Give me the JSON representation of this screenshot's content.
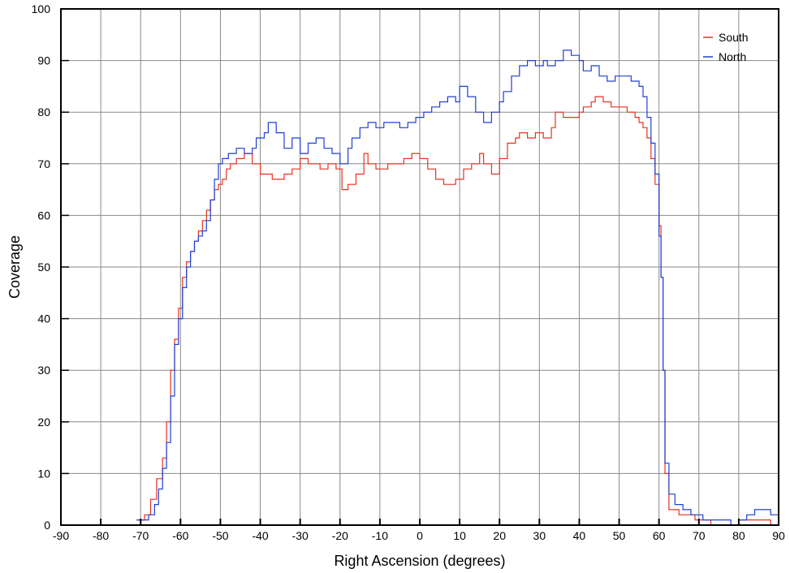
{
  "chart_data": {
    "type": "line",
    "title": "",
    "xlabel": "Right Ascension (degrees)",
    "ylabel": "Coverage",
    "xlim": [
      -90,
      90
    ],
    "ylim": [
      0,
      100
    ],
    "x_ticks": [
      -90,
      -80,
      -70,
      -60,
      -50,
      -40,
      -30,
      -20,
      -10,
      0,
      10,
      20,
      30,
      40,
      50,
      60,
      70,
      80,
      90
    ],
    "y_ticks": [
      0,
      10,
      20,
      30,
      40,
      50,
      60,
      70,
      80,
      90,
      100
    ],
    "grid": true,
    "legend": "top-right",
    "step": true,
    "series": [
      {
        "name": "South",
        "color": "#e8321e",
        "points": [
          [
            -71,
            1
          ],
          [
            -69,
            2
          ],
          [
            -67.5,
            5
          ],
          [
            -66,
            9
          ],
          [
            -64.5,
            13
          ],
          [
            -63.5,
            20
          ],
          [
            -62.5,
            30
          ],
          [
            -61.5,
            36
          ],
          [
            -60.5,
            42
          ],
          [
            -59.5,
            48
          ],
          [
            -58.5,
            51
          ],
          [
            -57.5,
            53
          ],
          [
            -56.5,
            55
          ],
          [
            -55.5,
            57
          ],
          [
            -54.5,
            59
          ],
          [
            -53.5,
            61
          ],
          [
            -52.5,
            63
          ],
          [
            -51.5,
            65
          ],
          [
            -50.5,
            66
          ],
          [
            -49.5,
            67
          ],
          [
            -48.5,
            69
          ],
          [
            -47.5,
            70
          ],
          [
            -46,
            71
          ],
          [
            -44,
            72
          ],
          [
            -42,
            70
          ],
          [
            -40,
            68
          ],
          [
            -37,
            67
          ],
          [
            -34,
            68
          ],
          [
            -32,
            69
          ],
          [
            -30,
            71
          ],
          [
            -28,
            70
          ],
          [
            -25,
            69
          ],
          [
            -23,
            70
          ],
          [
            -21,
            69
          ],
          [
            -19.5,
            65
          ],
          [
            -18,
            66
          ],
          [
            -16,
            68
          ],
          [
            -14,
            72
          ],
          [
            -13,
            70
          ],
          [
            -11,
            69
          ],
          [
            -8,
            70
          ],
          [
            -6,
            70
          ],
          [
            -4,
            71
          ],
          [
            -2,
            72
          ],
          [
            0,
            71
          ],
          [
            2,
            69
          ],
          [
            4,
            67
          ],
          [
            6,
            66
          ],
          [
            9,
            67
          ],
          [
            11,
            69
          ],
          [
            13,
            70
          ],
          [
            15,
            72
          ],
          [
            16,
            70
          ],
          [
            18,
            68
          ],
          [
            20,
            71
          ],
          [
            22,
            74
          ],
          [
            24,
            75
          ],
          [
            25,
            76
          ],
          [
            27,
            75
          ],
          [
            29,
            76
          ],
          [
            31,
            75
          ],
          [
            33,
            77
          ],
          [
            34,
            80
          ],
          [
            36,
            79
          ],
          [
            38,
            79
          ],
          [
            40,
            80
          ],
          [
            41,
            81
          ],
          [
            43,
            82
          ],
          [
            44,
            83
          ],
          [
            46,
            82
          ],
          [
            48,
            81
          ],
          [
            50,
            81
          ],
          [
            52,
            80
          ],
          [
            54,
            79
          ],
          [
            55,
            78
          ],
          [
            56,
            77
          ],
          [
            57,
            75
          ],
          [
            58,
            71
          ],
          [
            59,
            66
          ],
          [
            60,
            58
          ],
          [
            60.5,
            48
          ],
          [
            61,
            30
          ],
          [
            61.5,
            10
          ],
          [
            62.5,
            3
          ],
          [
            65,
            2
          ],
          [
            69,
            1
          ],
          [
            73,
            0
          ],
          [
            78,
            0
          ],
          [
            80,
            1
          ],
          [
            85,
            1
          ],
          [
            88,
            0
          ]
        ]
      },
      {
        "name": "North",
        "color": "#1f3fd6",
        "points": [
          [
            -71,
            1
          ],
          [
            -69.5,
            1
          ],
          [
            -68,
            2
          ],
          [
            -66.5,
            4
          ],
          [
            -65.5,
            7
          ],
          [
            -64.5,
            11
          ],
          [
            -63.5,
            16
          ],
          [
            -62.5,
            25
          ],
          [
            -61.5,
            35
          ],
          [
            -60.5,
            40
          ],
          [
            -59.5,
            46
          ],
          [
            -58.5,
            50
          ],
          [
            -57.5,
            53
          ],
          [
            -56.5,
            55
          ],
          [
            -55.5,
            56
          ],
          [
            -54.5,
            57
          ],
          [
            -53.5,
            59
          ],
          [
            -52.5,
            63
          ],
          [
            -51.5,
            67
          ],
          [
            -50.5,
            70
          ],
          [
            -49.5,
            71
          ],
          [
            -48,
            72
          ],
          [
            -46,
            73
          ],
          [
            -44,
            72
          ],
          [
            -42,
            73
          ],
          [
            -41,
            75
          ],
          [
            -39,
            76
          ],
          [
            -38,
            78
          ],
          [
            -36,
            76
          ],
          [
            -34,
            73
          ],
          [
            -32,
            75
          ],
          [
            -30,
            72
          ],
          [
            -28,
            74
          ],
          [
            -26,
            75
          ],
          [
            -24,
            73
          ],
          [
            -22,
            72
          ],
          [
            -20,
            70
          ],
          [
            -18,
            73
          ],
          [
            -17,
            75
          ],
          [
            -15,
            77
          ],
          [
            -13,
            78
          ],
          [
            -11,
            77
          ],
          [
            -9,
            78
          ],
          [
            -7,
            78
          ],
          [
            -5,
            77
          ],
          [
            -3,
            78
          ],
          [
            -1,
            79
          ],
          [
            1,
            80
          ],
          [
            3,
            81
          ],
          [
            5,
            82
          ],
          [
            7,
            83
          ],
          [
            9,
            82
          ],
          [
            10,
            85
          ],
          [
            12,
            83
          ],
          [
            14,
            80
          ],
          [
            16,
            78
          ],
          [
            18,
            80
          ],
          [
            20,
            82
          ],
          [
            21,
            84
          ],
          [
            23,
            87
          ],
          [
            25,
            89
          ],
          [
            27,
            90
          ],
          [
            29,
            89
          ],
          [
            31,
            90
          ],
          [
            32,
            89
          ],
          [
            34,
            90
          ],
          [
            36,
            92
          ],
          [
            38,
            91
          ],
          [
            40,
            90
          ],
          [
            41,
            88
          ],
          [
            43,
            89
          ],
          [
            45,
            87
          ],
          [
            47,
            86
          ],
          [
            49,
            87
          ],
          [
            51,
            87
          ],
          [
            53,
            86
          ],
          [
            55,
            85
          ],
          [
            56,
            83
          ],
          [
            57,
            79
          ],
          [
            58,
            74
          ],
          [
            59,
            68
          ],
          [
            60,
            56
          ],
          [
            60.5,
            48
          ],
          [
            61,
            30
          ],
          [
            61.5,
            12
          ],
          [
            62.5,
            6
          ],
          [
            64,
            4
          ],
          [
            66,
            3
          ],
          [
            68,
            2
          ],
          [
            71,
            1
          ],
          [
            74,
            1
          ],
          [
            78,
            0
          ],
          [
            80,
            1
          ],
          [
            82,
            2
          ],
          [
            84,
            3
          ],
          [
            88,
            2
          ],
          [
            90,
            1
          ]
        ]
      }
    ]
  }
}
